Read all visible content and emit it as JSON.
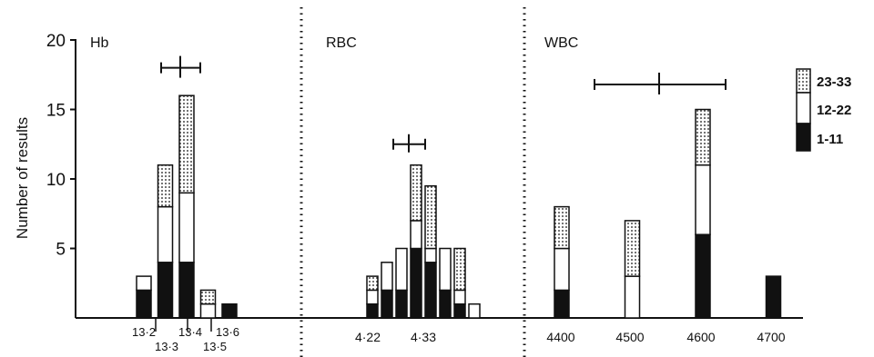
{
  "chart_data": {
    "type": "bar",
    "stacked": true,
    "ylabel": "Number of results",
    "ylim": [
      0,
      20
    ],
    "yticks": [
      5,
      10,
      15,
      20
    ],
    "legend": {
      "placement": "right",
      "entries": [
        {
          "label": "23-33",
          "pattern": "dotted"
        },
        {
          "label": "12-22",
          "pattern": "white"
        },
        {
          "label": "1-11",
          "pattern": "black"
        }
      ]
    },
    "colors": {
      "black": "#111111",
      "white": "#ffffff",
      "dots": "#111111"
    },
    "panels": [
      {
        "label": "Hb",
        "tick_labels": [
          {
            "text": "13·2",
            "row": 0
          },
          {
            "text": "13·3",
            "row": 1
          },
          {
            "text": "13·4",
            "row": 0
          },
          {
            "text": "13·5",
            "row": 1
          },
          {
            "text": "13·6",
            "row": 0
          }
        ],
        "errorbar": {
          "y": 18
        },
        "bars": [
          {
            "x": "13.2",
            "black": 2,
            "white": 1,
            "dotted": 0
          },
          {
            "x": "13.3",
            "black": 4,
            "white": 4,
            "dotted": 3
          },
          {
            "x": "13.4",
            "black": 4,
            "white": 5,
            "dotted": 7
          },
          {
            "x": "13.5",
            "black": 0,
            "white": 1,
            "dotted": 1
          },
          {
            "x": "13.6",
            "black": 1,
            "white": 0,
            "dotted": 0
          }
        ]
      },
      {
        "label": "RBC",
        "tick_labels": [
          {
            "text": "4·22"
          },
          {
            "text": "4·33"
          }
        ],
        "errorbar": {
          "y": 12.5
        },
        "bars": [
          {
            "x": "4.20",
            "black": 1,
            "white": 1,
            "dotted": 1
          },
          {
            "x": "4.21",
            "black": 2,
            "white": 2,
            "dotted": 0
          },
          {
            "x": "4.22",
            "black": 2,
            "white": 3,
            "dotted": 0
          },
          {
            "x": "4.23",
            "black": 5,
            "white": 2,
            "dotted": 4
          },
          {
            "x": "4.24",
            "black": 4,
            "white": 1,
            "dotted": 4.5
          },
          {
            "x": "4.25",
            "black": 2,
            "white": 3,
            "dotted": 0
          },
          {
            "x": "4.26",
            "black": 1,
            "white": 1,
            "dotted": 3
          },
          {
            "x": "4.27",
            "black": 0,
            "white": 1,
            "dotted": 0
          }
        ]
      },
      {
        "label": "WBC",
        "tick_labels": [
          {
            "text": "4400"
          },
          {
            "text": "4500"
          },
          {
            "text": "4600"
          },
          {
            "text": "4700"
          }
        ],
        "errorbar": {
          "y": 16.8
        },
        "bars": [
          {
            "x": "4400",
            "black": 2,
            "white": 3,
            "dotted": 3
          },
          {
            "x": "4500",
            "black": 0,
            "white": 3,
            "dotted": 4
          },
          {
            "x": "4600",
            "black": 6,
            "white": 5,
            "dotted": 4
          },
          {
            "x": "4700",
            "black": 3,
            "white": 0,
            "dotted": 0
          }
        ]
      }
    ]
  }
}
